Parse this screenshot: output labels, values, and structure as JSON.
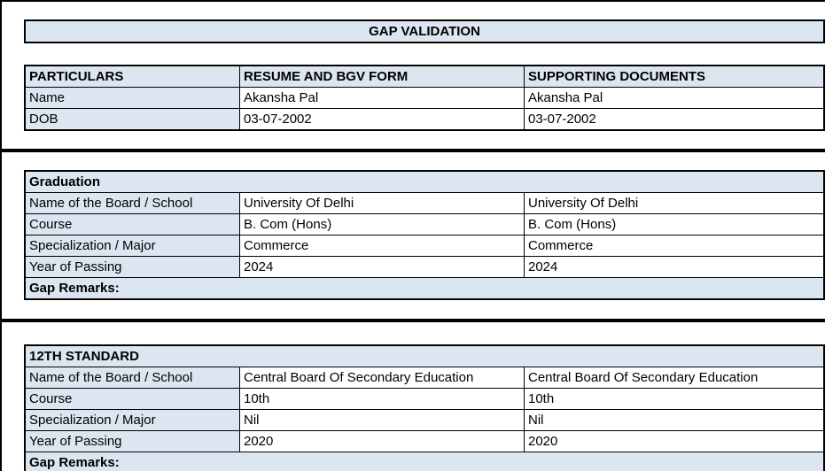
{
  "banner": {
    "title": "GAP VALIDATION"
  },
  "columns": [
    "PARTICULARS",
    "RESUME AND BGV FORM",
    "SUPPORTING DOCUMENTS"
  ],
  "personal": {
    "rows": [
      {
        "label": "Name",
        "resume": "Akansha Pal",
        "supporting": "Akansha Pal"
      },
      {
        "label": "DOB",
        "resume": "03-07-2002",
        "supporting": "03-07-2002"
      }
    ]
  },
  "graduation": {
    "title": "Graduation",
    "rows": [
      {
        "label": "Name of the Board / School",
        "resume": "University Of Delhi",
        "supporting": "University Of Delhi"
      },
      {
        "label": "Course",
        "resume": "B. Com (Hons)",
        "supporting": "B. Com (Hons)"
      },
      {
        "label": "Specialization / Major",
        "resume": "Commerce",
        "supporting": "Commerce"
      },
      {
        "label": "Year of Passing",
        "resume": "2024",
        "supporting": "2024"
      }
    ],
    "remarks_label": "Gap Remarks:",
    "remarks_value": ""
  },
  "twelfth": {
    "title": "12TH STANDARD",
    "rows": [
      {
        "label": "Name of the Board / School",
        "resume": "Central Board Of Secondary Education",
        "supporting": "Central Board Of Secondary Education"
      },
      {
        "label": "Course",
        "resume": "10th",
        "supporting": "10th"
      },
      {
        "label": "Specialization / Major",
        "resume": "Nil",
        "supporting": "Nil"
      },
      {
        "label": "Year of Passing",
        "resume": "2020",
        "supporting": "2020"
      }
    ],
    "remarks_label": "Gap Remarks:",
    "remarks_value": ""
  },
  "colors": {
    "fill": "#dce6f1",
    "border": "#000000",
    "text": "#000000",
    "background": "#ffffff"
  }
}
